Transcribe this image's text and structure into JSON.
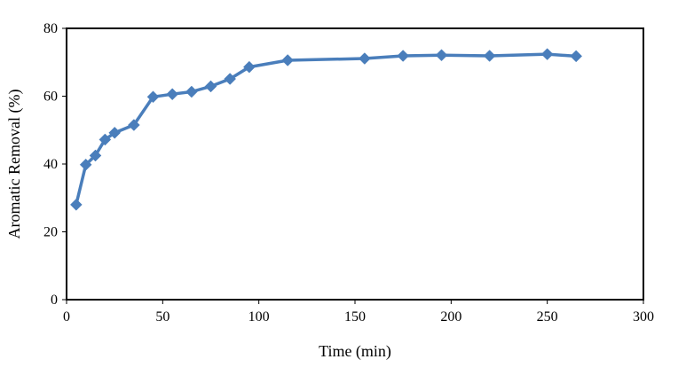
{
  "chart_data": {
    "type": "line",
    "title": "",
    "xlabel": "Time (min)",
    "ylabel": "Aromatic Removal (%)",
    "xlim": [
      0,
      300
    ],
    "ylim": [
      0,
      80
    ],
    "x_ticks": [
      0,
      50,
      100,
      150,
      200,
      250,
      300
    ],
    "y_ticks": [
      0,
      20,
      40,
      60,
      80
    ],
    "grid": false,
    "legend": "none",
    "series": [
      {
        "color": "#4a7ebb",
        "marker": "diamond",
        "points": [
          {
            "x": 5,
            "y": 28
          },
          {
            "x": 10,
            "y": 39.8
          },
          {
            "x": 15,
            "y": 42.5
          },
          {
            "x": 20,
            "y": 47.2
          },
          {
            "x": 25,
            "y": 49.2
          },
          {
            "x": 35,
            "y": 51.5
          },
          {
            "x": 45,
            "y": 59.8
          },
          {
            "x": 55,
            "y": 60.6
          },
          {
            "x": 65,
            "y": 61.3
          },
          {
            "x": 75,
            "y": 62.9
          },
          {
            "x": 85,
            "y": 65.1
          },
          {
            "x": 95,
            "y": 68.6
          },
          {
            "x": 115,
            "y": 70.6
          },
          {
            "x": 155,
            "y": 71.1
          },
          {
            "x": 175,
            "y": 71.9
          },
          {
            "x": 195,
            "y": 72.1
          },
          {
            "x": 220,
            "y": 71.9
          },
          {
            "x": 250,
            "y": 72.4
          },
          {
            "x": 265,
            "y": 71.8
          }
        ]
      }
    ]
  }
}
